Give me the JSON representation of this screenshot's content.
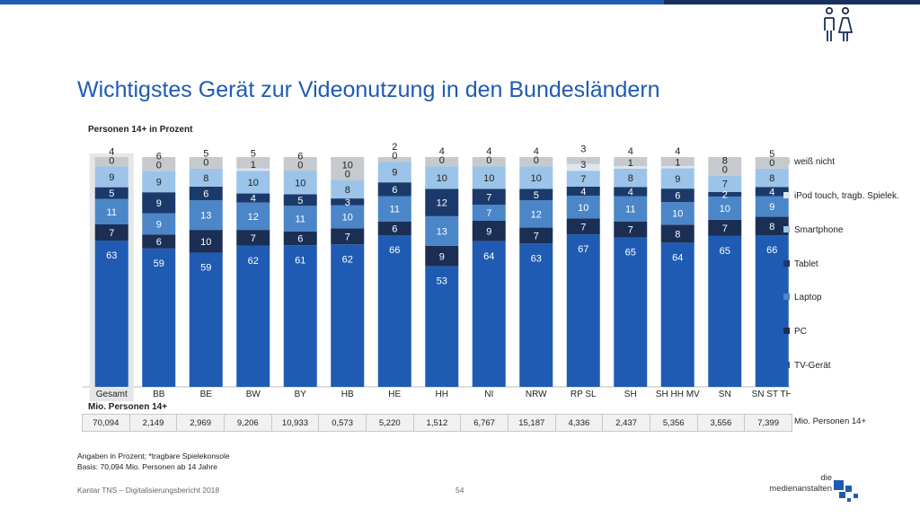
{
  "header": {
    "title": "Wichtigstes Gerät zur Videonutzung in den Bundesländern",
    "subtitle": "Personen 14+ in Prozent"
  },
  "colors": {
    "accent": "#1f5bb3",
    "tv": "#1f5bb3",
    "pc": "#1b2f55",
    "laptop": "#4a86c8",
    "tablet": "#1b3a6b",
    "smartphone": "#9cc4e8",
    "ipod": "#dde5ee",
    "weiss_nicht": "#c6c9cd",
    "highlight": "#e4e6e8"
  },
  "chart_data": {
    "type": "bar",
    "stacked": true,
    "categories": [
      "Gesamt",
      "BB",
      "BE",
      "BW",
      "BY",
      "HB",
      "HE",
      "HH",
      "NI",
      "NRW",
      "RP SL",
      "SH",
      "SH HH MV",
      "SN",
      "SN ST TH"
    ],
    "series": [
      {
        "name": "TV-Gerät",
        "values": [
          63,
          59,
          59,
          62,
          61,
          62,
          66,
          53,
          64,
          63,
          67,
          65,
          64,
          65,
          66
        ]
      },
      {
        "name": "PC",
        "values": [
          7,
          6,
          10,
          7,
          6,
          7,
          6,
          9,
          9,
          7,
          7,
          7,
          8,
          7,
          8
        ]
      },
      {
        "name": "Laptop",
        "values": [
          11,
          9,
          13,
          12,
          11,
          10,
          11,
          13,
          7,
          12,
          10,
          11,
          10,
          10,
          9
        ]
      },
      {
        "name": "Tablet",
        "values": [
          5,
          9,
          6,
          4,
          5,
          3,
          6,
          12,
          7,
          5,
          4,
          4,
          6,
          2,
          4
        ]
      },
      {
        "name": "Smartphone",
        "values": [
          9,
          9,
          8,
          10,
          10,
          8,
          9,
          10,
          10,
          10,
          7,
          8,
          9,
          7,
          8
        ]
      },
      {
        "name": "iPod touch, tragb. Spielek.",
        "values": [
          0,
          0,
          0,
          1,
          0,
          0,
          0,
          0,
          0,
          0,
          3,
          1,
          1,
          0,
          0
        ]
      },
      {
        "name": "weiß nicht",
        "values": [
          4,
          6,
          5,
          5,
          6,
          10,
          2,
          4,
          4,
          4,
          3,
          4,
          4,
          8,
          5
        ]
      }
    ],
    "bar_labels": [
      [
        "63",
        "7",
        "11",
        "5",
        "9",
        "0",
        "4"
      ],
      [
        "59",
        "6",
        "9",
        "9",
        "9",
        "0",
        "6"
      ],
      [
        "59",
        "10",
        "13",
        "6",
        "8",
        "0",
        "5"
      ],
      [
        "62",
        "7",
        "12",
        "4",
        "10",
        "1",
        "5"
      ],
      [
        "61",
        "6",
        "11",
        "5",
        "10",
        "0",
        "6"
      ],
      [
        "62",
        "7",
        "10",
        "3",
        "8",
        "0",
        "10"
      ],
      [
        "66",
        "6",
        "11",
        "6",
        "9",
        "0",
        "2"
      ],
      [
        "53",
        "9",
        "13",
        "12",
        "10",
        "0",
        "4"
      ],
      [
        "64",
        "9",
        "7",
        "7",
        "10",
        "0",
        "4"
      ],
      [
        "63",
        "7",
        "12",
        "5",
        "10",
        "0",
        "4"
      ],
      [
        "67",
        "7",
        "10",
        "4",
        "7",
        "3",
        "3"
      ],
      [
        "65",
        "7",
        "11",
        "4",
        "8",
        "1",
        "4"
      ],
      [
        "64",
        "8",
        "10",
        "6",
        "9",
        "1",
        "4"
      ],
      [
        "65",
        "7",
        "10",
        "2",
        "7",
        "0",
        "8"
      ],
      [
        "66",
        "8",
        "9",
        "4",
        "8",
        "0",
        "5"
      ]
    ],
    "ylim": [
      0,
      100
    ],
    "grid": false,
    "legend_placement": "right",
    "highlight_category": "Gesamt"
  },
  "legend": {
    "items": [
      "weiß nicht",
      "iPod touch, tragb. Spielek.",
      "Smartphone",
      "Tablet",
      "Laptop",
      "PC",
      "TV-Gerät"
    ]
  },
  "mio": {
    "label": "Mio. Personen 14+",
    "side_label": "Mio.  Personen 14+",
    "values": [
      "70,094",
      "2,149",
      "2,969",
      "9,206",
      "10,933",
      "0,573",
      "5,220",
      "1,512",
      "6,767",
      "15,187",
      "4,336",
      "2,437",
      "5,356",
      "3,556",
      "7,399"
    ]
  },
  "notes": {
    "line1": "Angaben in Prozent; *tragbare Spielekonsole",
    "line2": "Basis: 70,094 Mio. Personen ab 14 Jahre"
  },
  "footer": {
    "source": "Kantar TNS – Digitalisierungsbericht 2018",
    "page": "54"
  },
  "logo": {
    "line1": "die",
    "line2": "medienanstalten"
  }
}
